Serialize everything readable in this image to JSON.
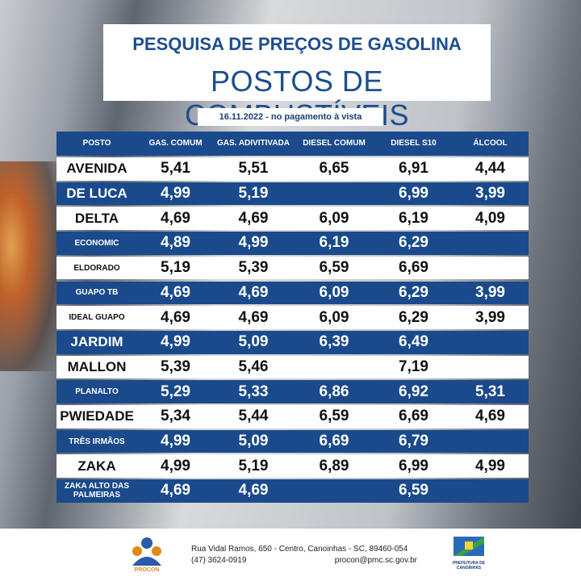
{
  "header": {
    "title": "PESQUISA DE PREÇOS DE GASOLINA",
    "subtitle": "POSTOS DE COMBUSTÍVEIS",
    "date": "16.11.2022 - no pagamento à vista"
  },
  "table": {
    "columns": [
      "POSTO",
      "GAS. COMUM",
      "GAS. ADIVITIVADA",
      "DIESEL COMUM",
      "DIESEL S10",
      "ÁLCOOL"
    ],
    "rows": [
      [
        "AVENIDA",
        "5,41",
        "5,51",
        "6,65",
        "6,91",
        "4,44"
      ],
      [
        "DE LUCA",
        "4,99",
        "5,19",
        null,
        "6,99",
        "3,99"
      ],
      [
        "DELTA",
        "4,69",
        "4,69",
        "6,09",
        "6,19",
        "4,09"
      ],
      [
        "ECONOMIC",
        "4,89",
        "4,99",
        "6,19",
        "6,29",
        null
      ],
      [
        "ELDORADO",
        "5,19",
        "5,39",
        "6,59",
        "6,69",
        null
      ],
      [
        "GUAPO TB",
        "4,69",
        "4,69",
        "6,09",
        "6,29",
        "3,99"
      ],
      [
        "IDEAL GUAPO",
        "4,69",
        "4,69",
        "6,09",
        "6,29",
        "3,99"
      ],
      [
        "JARDIM",
        "4,99",
        "5,09",
        "6,39",
        "6,49",
        null
      ],
      [
        "MALLON",
        "5,39",
        "5,46",
        null,
        "7,19",
        null
      ],
      [
        "PLANALTO",
        "5,29",
        "5,33",
        "6,86",
        "6,92",
        "5,31"
      ],
      [
        "PWIEDADE",
        "5,34",
        "5,44",
        "6,59",
        "6,69",
        "4,69"
      ],
      [
        "TRÊS IRMÃOS",
        "4,99",
        "5,09",
        "6,69",
        "6,79",
        null
      ],
      [
        "ZAKA",
        "4,99",
        "5,19",
        "6,89",
        "6,99",
        "4,99"
      ],
      [
        "ZAKA ALTO DAS PALMEIRAS",
        "4,69",
        "4,69",
        null,
        "6,59",
        null
      ]
    ]
  },
  "footer": {
    "address": "Rua Vidal Ramos, 650 - Centro, Canoinhas - SC, 89460-054",
    "phone": "(47) 3624-0919",
    "email": "procon@pmc.sc.gov.br",
    "procon_logo": "PROCON",
    "city_logo": "PREFEITURA DE CANOINHAS"
  }
}
